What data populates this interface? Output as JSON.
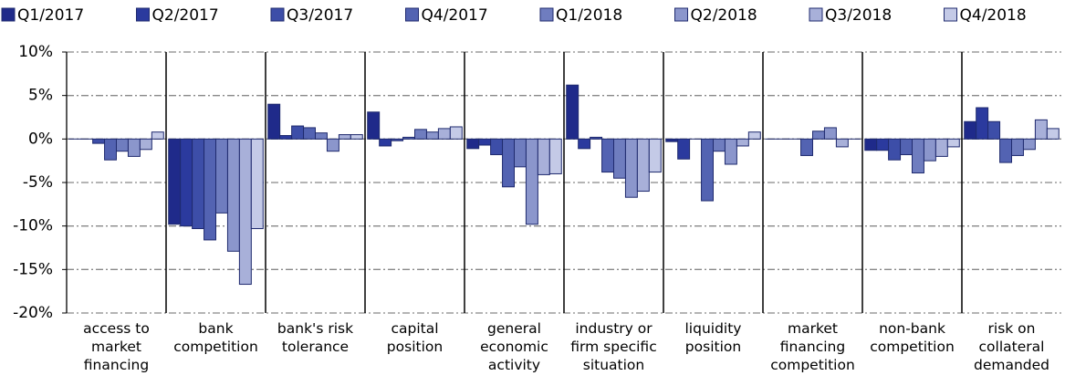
{
  "chart_data": {
    "type": "bar",
    "categories": [
      "access to\nmarket\nfinancing",
      "bank\ncompetition",
      "bank's risk\ntolerance",
      "capital\nposition",
      "general\neconomic\nactivity",
      "industry or\nfirm specific\nsituation",
      "liquidity\nposition",
      "market\nfinancing\ncompetition",
      "non-bank\ncompetition",
      "risk on\ncollateral\ndemanded"
    ],
    "series": [
      {
        "name": "Q1/2017",
        "color": "#1f2a8a",
        "values": [
          0,
          -9.8,
          4.0,
          3.1,
          -1.1,
          6.2,
          -0.3,
          0,
          -1.3,
          2.0
        ]
      },
      {
        "name": "Q2/2017",
        "color": "#2b3a9e",
        "values": [
          0,
          -10.0,
          0.4,
          -0.8,
          -0.7,
          -1.1,
          -2.3,
          0,
          -1.3,
          3.6
        ]
      },
      {
        "name": "Q3/2017",
        "color": "#3d4ea8",
        "values": [
          -0.5,
          -10.3,
          1.5,
          -0.2,
          -1.8,
          0.2,
          0,
          0,
          -2.4,
          2.0
        ]
      },
      {
        "name": "Q4/2017",
        "color": "#5363b2",
        "values": [
          -2.4,
          -11.6,
          1.3,
          0.2,
          -5.5,
          -3.8,
          -7.1,
          -1.9,
          -1.8,
          -2.7
        ]
      },
      {
        "name": "Q1/2018",
        "color": "#6f7dbf",
        "values": [
          -1.4,
          -8.5,
          0.7,
          1.1,
          -3.2,
          -4.5,
          -1.4,
          0.9,
          -3.9,
          -1.9
        ]
      },
      {
        "name": "Q2/2018",
        "color": "#8b96cc",
        "values": [
          -2.0,
          -12.9,
          -1.4,
          0.8,
          -9.8,
          -6.7,
          -2.9,
          1.3,
          -2.5,
          -1.2
        ]
      },
      {
        "name": "Q3/2018",
        "color": "#a8b0d9",
        "values": [
          -1.2,
          -16.7,
          0.5,
          1.2,
          -4.1,
          -6.0,
          -0.8,
          -0.9,
          -2.0,
          2.2
        ]
      },
      {
        "name": "Q4/2018",
        "color": "#c4cae7",
        "values": [
          0.8,
          -10.3,
          0.5,
          1.4,
          -4.0,
          -3.8,
          0.8,
          0,
          -0.9,
          1.2
        ]
      }
    ],
    "ylim": [
      -20,
      10
    ],
    "yticks": [
      {
        "value": -20,
        "label": "-20%"
      },
      {
        "value": -15,
        "label": "-15%"
      },
      {
        "value": -10,
        "label": "-10%"
      },
      {
        "value": -5,
        "label": "-5%"
      },
      {
        "value": 0,
        "label": "0%"
      },
      {
        "value": 5,
        "label": "5%"
      },
      {
        "value": 10,
        "label": "10%"
      }
    ],
    "grid": true,
    "legend": "top"
  }
}
